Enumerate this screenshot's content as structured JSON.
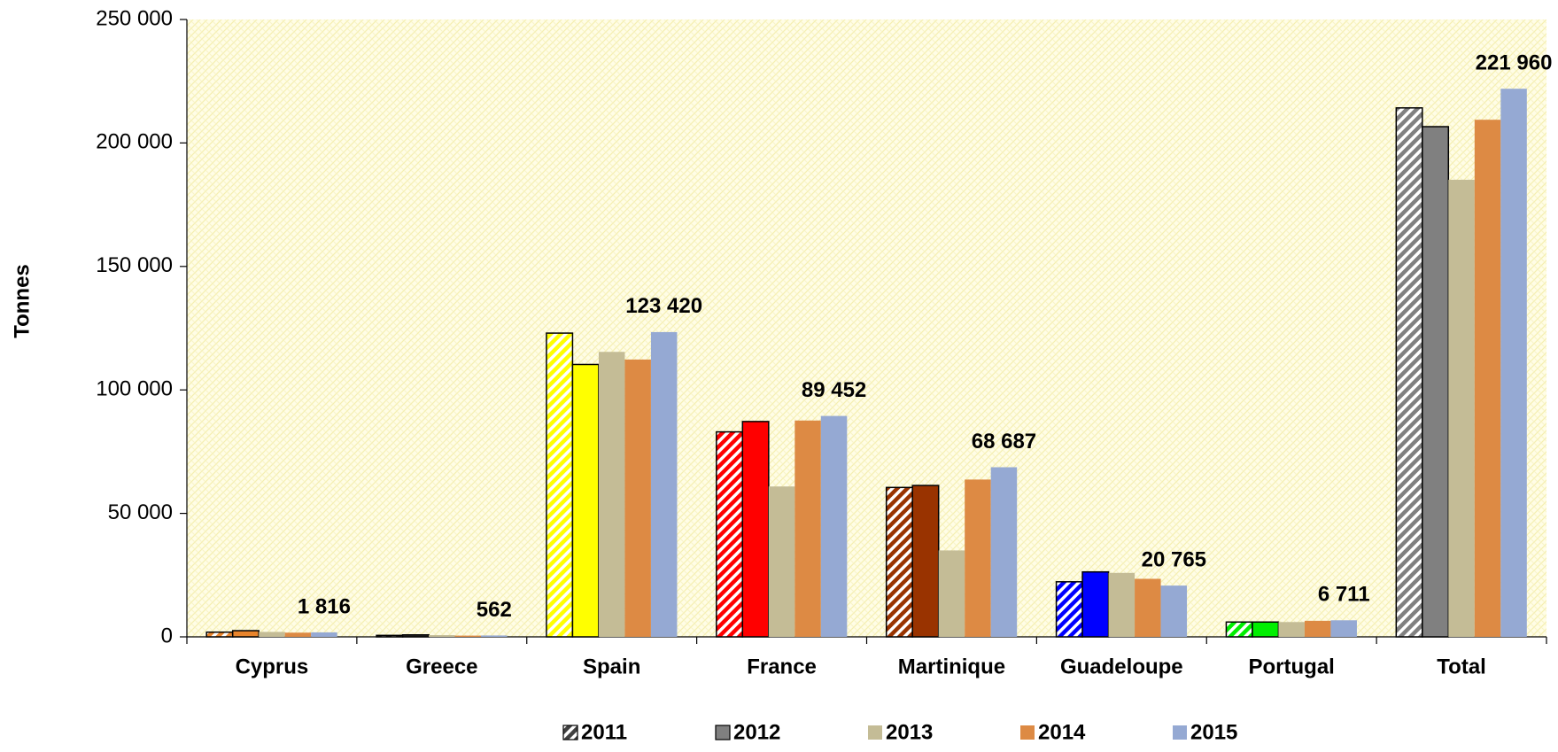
{
  "chart_data": {
    "type": "bar",
    "y_label": "Tonnes",
    "categories": [
      "Cyprus",
      "Greece",
      "Spain",
      "France",
      "Martinique",
      "Guadeloupe",
      "Portugal",
      "Total"
    ],
    "category_colors": [
      "#e8842c",
      "#333333",
      "#ffff00",
      "#ff0000",
      "#993300",
      "#0000ff",
      "#00ee00",
      "#808080"
    ],
    "series": [
      {
        "name": "2011",
        "color": "#404040",
        "pattern": "hatch",
        "values": [
          1900,
          600,
          123000,
          83000,
          60500,
          22300,
          6000,
          214200
        ]
      },
      {
        "name": "2012",
        "color": "#808080",
        "values": [
          2500,
          800,
          110300,
          87200,
          61300,
          26300,
          6000,
          206600
        ]
      },
      {
        "name": "2013",
        "color": "#c4bc96",
        "values": [
          2000,
          700,
          115400,
          60900,
          35000,
          25900,
          6000,
          185100
        ]
      },
      {
        "name": "2014",
        "color": "#dd8a44",
        "values": [
          1700,
          500,
          112300,
          87600,
          63700,
          23500,
          6500,
          209400
        ]
      },
      {
        "name": "2015",
        "color": "#95a9d3",
        "values": [
          1816,
          562,
          123420,
          89452,
          68687,
          20765,
          6711,
          221960
        ],
        "value_labels": [
          "1 816",
          "562",
          "123 420",
          "89 452",
          "68 687",
          "20 765",
          "6 711",
          "221 960"
        ]
      }
    ],
    "ylim": [
      0,
      250000
    ],
    "yticks": [
      0,
      {
        "value": 50000,
        "label": "50 000"
      },
      {
        "value": 100000,
        "label": "100 000"
      },
      {
        "value": 150000,
        "label": "150 000"
      },
      {
        "value": 200000,
        "label": "200 000"
      },
      {
        "value": 250000,
        "label": "250 000"
      }
    ],
    "legend": "bottom"
  }
}
